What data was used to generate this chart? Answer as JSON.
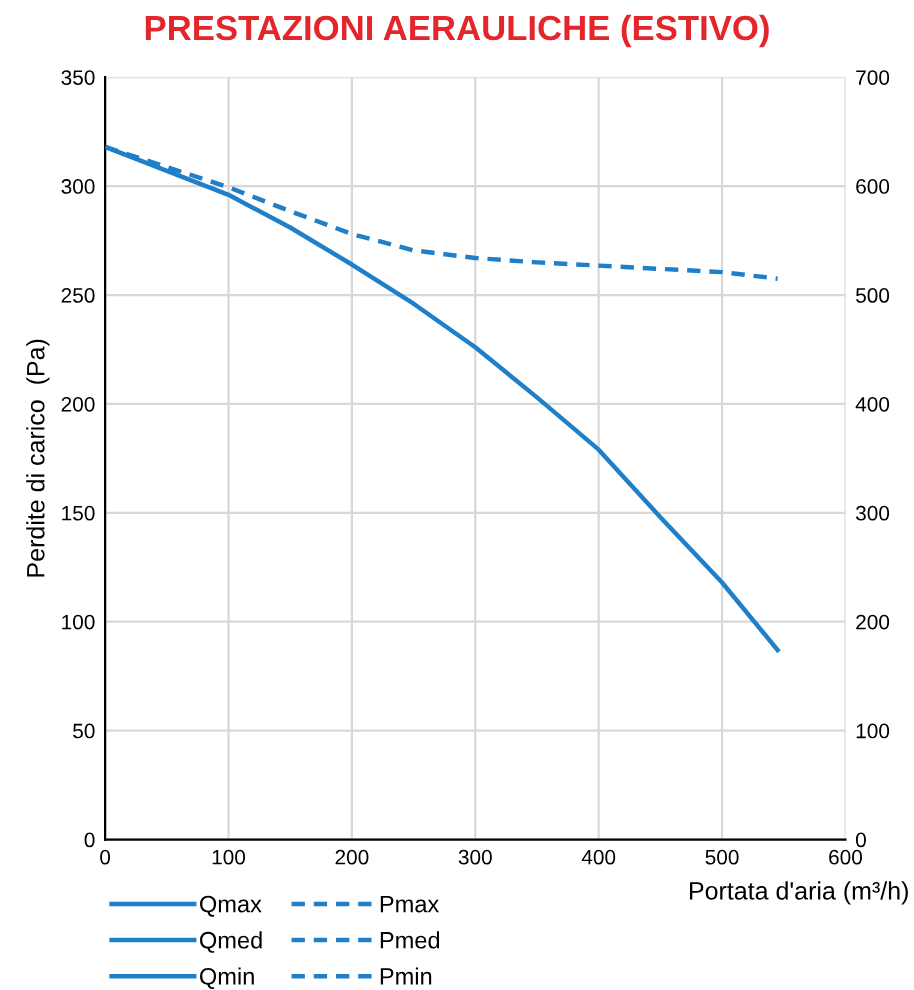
{
  "chart_data": {
    "type": "line",
    "title": "PRESTAZIONI AERAULICHE (ESTIVO)",
    "xlabel": "Portata d'aria (m³/h)",
    "ylabel": "Perdite di carico  (Pa)",
    "x": [
      0,
      100,
      150,
      200,
      250,
      300,
      350,
      400,
      450,
      500,
      545
    ],
    "series": [
      {
        "name": "Qmax",
        "color": "#1f7fc8",
        "line_style": "solid",
        "values": [
          318,
          296,
          281,
          264,
          246,
          226,
          203,
          179,
          148,
          118,
          87
        ]
      },
      {
        "name": "Pmax",
        "color": "#1f7fc8",
        "line_style": "dashed",
        "axis": "y2",
        "values": [
          636,
          599,
          577,
          556,
          541,
          534,
          530,
          527,
          524,
          521,
          515
        ]
      },
      {
        "name": "Qmed",
        "color": "#1f7fc8",
        "line_style": "solid",
        "values": [
          null,
          null,
          null,
          null,
          null,
          null,
          null,
          null,
          null,
          null,
          null
        ]
      },
      {
        "name": "Pmed",
        "color": "#1f7fc8",
        "line_style": "dashed",
        "axis": "y2",
        "values": [
          null,
          null,
          null,
          null,
          null,
          null,
          null,
          null,
          null,
          null,
          null
        ]
      },
      {
        "name": "Qmin",
        "color": "#1f7fc8",
        "line_style": "solid",
        "values": [
          null,
          null,
          null,
          null,
          null,
          null,
          null,
          null,
          null,
          null,
          null
        ]
      },
      {
        "name": "Pmin",
        "color": "#1f7fc8",
        "line_style": "dashed",
        "axis": "y2",
        "values": [
          null,
          null,
          null,
          null,
          null,
          null,
          null,
          null,
          null,
          null,
          null
        ]
      }
    ],
    "xlim": [
      0,
      600
    ],
    "xticks": [
      0,
      100,
      200,
      300,
      400,
      500,
      600
    ],
    "ylim": [
      0,
      350
    ],
    "yticks": [
      0,
      50,
      100,
      150,
      200,
      250,
      300,
      350
    ],
    "y2lim": [
      0,
      700
    ],
    "y2ticks": [
      0,
      100,
      200,
      300,
      400,
      500,
      600,
      700
    ],
    "grid": true,
    "legend": "bottom",
    "marker": "none"
  }
}
